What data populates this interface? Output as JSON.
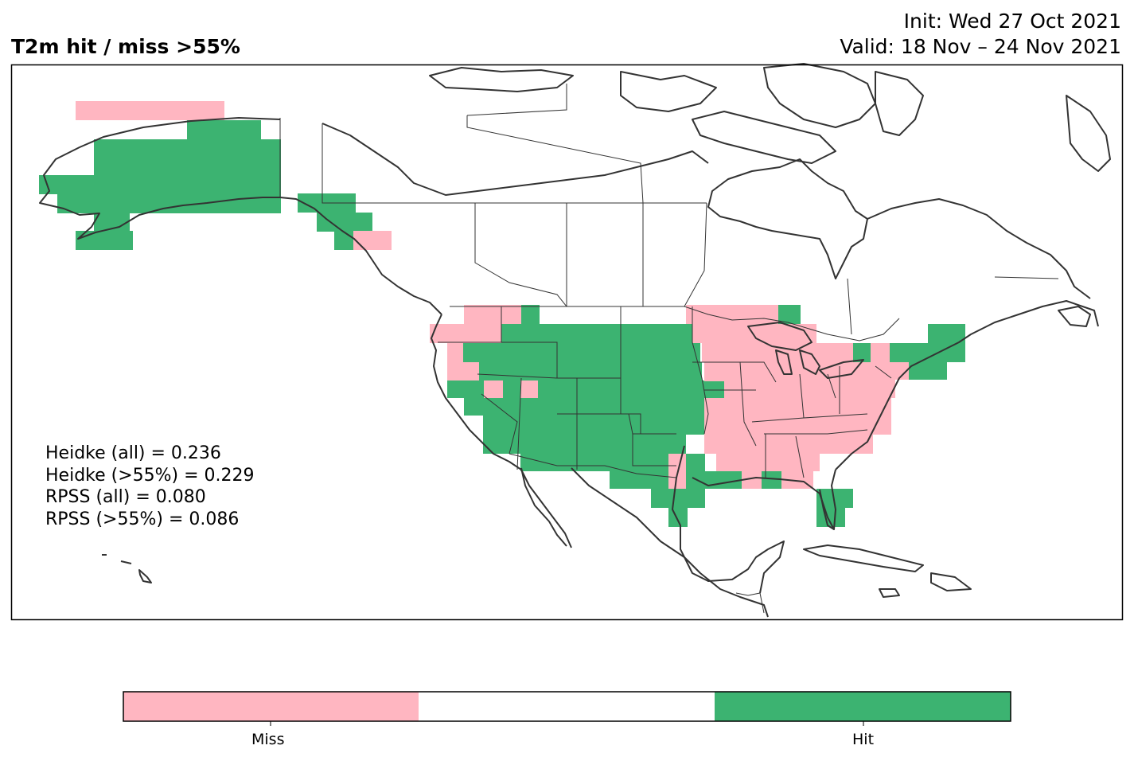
{
  "header": {
    "title": "T2m hit / miss  >55%",
    "init": "Init: Wed 27 Oct 2021",
    "valid": "Valid: 18 Nov – 24 Nov 2021"
  },
  "stats": [
    "Heidke (all) = 0.236",
    "Heidke (>55%) = 0.229",
    "RPSS (all) = 0.080",
    "RPSS (>55%) = 0.086"
  ],
  "legend": {
    "miss_label": "Miss",
    "hit_label": "Hit",
    "colors": {
      "miss": "#ffb6c1",
      "neutral": "#ffffff",
      "hit": "#3cb371"
    }
  },
  "map": {
    "region": "North America",
    "projection": "lat-lon",
    "coastline_color": "#333333",
    "hit_cells": "green grid cells over Alaska, Pacific NW coast, western & central US, Texas, Gulf coast, Florida, New England",
    "miss_cells": "pink grid cells over northern Alaska coast, Pacific NW interior, Great Lakes, Midwest, Southeast"
  }
}
